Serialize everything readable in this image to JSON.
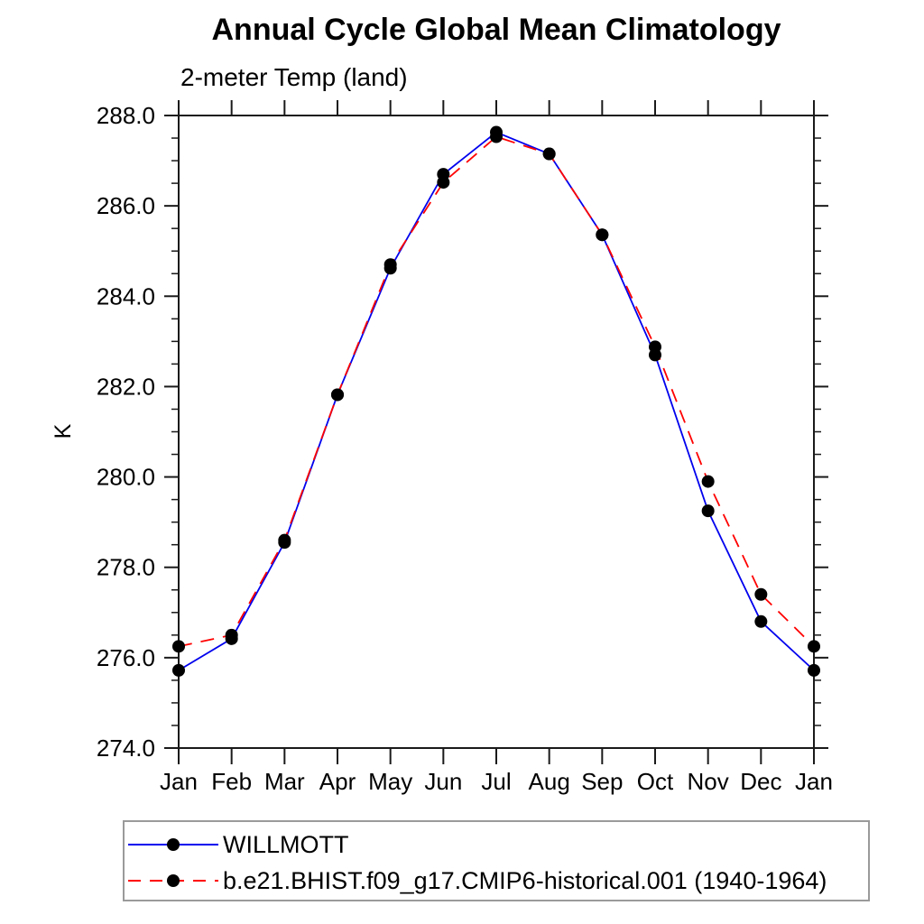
{
  "chart_data": {
    "type": "line",
    "title": "Annual Cycle Global Mean Climatology",
    "subtitle": "2-meter Temp (land)",
    "ylabel": "K",
    "xlabel": "",
    "categories": [
      "Jan",
      "Feb",
      "Mar",
      "Apr",
      "May",
      "Jun",
      "Jul",
      "Aug",
      "Sep",
      "Oct",
      "Nov",
      "Dec",
      "Jan"
    ],
    "ylim": [
      274.0,
      288.0
    ],
    "ytick_major": 2.0,
    "ytick_minor": 0.5,
    "ytick_label_format": "one_decimal",
    "grid": "off",
    "legend_position": "bottom-left",
    "axis_color": "#1a1a1a",
    "series": [
      {
        "name": "WILLMOTT",
        "color": "#0000ee",
        "style": "solid",
        "marker": "circle",
        "marker_color": "#000000",
        "values": [
          275.72,
          276.42,
          278.55,
          281.82,
          284.62,
          286.7,
          287.63,
          287.15,
          285.36,
          282.7,
          279.25,
          276.8,
          275.72
        ]
      },
      {
        "name": "b.e21.BHIST.f09_g17.CMIP6-historical.001 (1940-1964)",
        "color": "#ff0000",
        "style": "dashed",
        "marker": "circle",
        "marker_color": "#000000",
        "values": [
          276.25,
          276.5,
          278.6,
          281.82,
          284.7,
          286.52,
          287.53,
          287.15,
          285.36,
          282.88,
          279.9,
          277.4,
          276.25
        ]
      }
    ]
  }
}
